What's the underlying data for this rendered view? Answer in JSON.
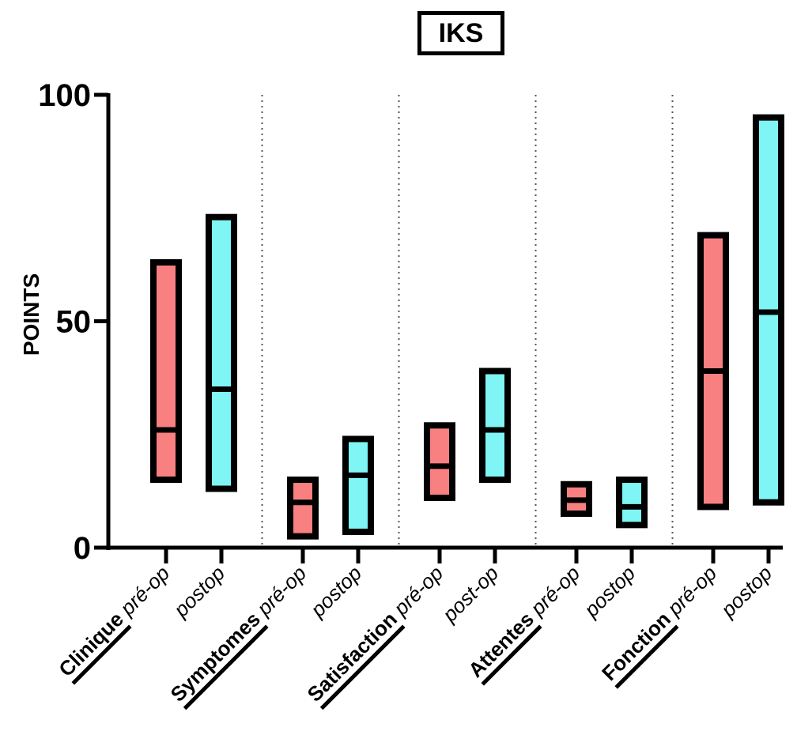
{
  "chart_data": {
    "type": "floating-bar",
    "title": "IKS",
    "ylabel": "POINTS",
    "ylim": [
      0,
      100
    ],
    "yticks": [
      0,
      50,
      100
    ],
    "groups": [
      {
        "name": "Clinique",
        "bars": [
          {
            "label": "pré-op",
            "phase": "pre",
            "min": 15,
            "median": 26,
            "max": 63
          },
          {
            "label": "postop",
            "phase": "post",
            "min": 13,
            "median": 35,
            "max": 73
          }
        ]
      },
      {
        "name": "Symptomes",
        "bars": [
          {
            "label": "pré-op",
            "phase": "pre",
            "min": 2.5,
            "median": 10,
            "max": 15
          },
          {
            "label": "postop",
            "phase": "post",
            "min": 3.5,
            "median": 16,
            "max": 24
          }
        ]
      },
      {
        "name": "Satisfaction",
        "bars": [
          {
            "label": "pré-op",
            "phase": "pre",
            "min": 11,
            "median": 18,
            "max": 27
          },
          {
            "label": "post-op",
            "phase": "post",
            "min": 15,
            "median": 26,
            "max": 39
          }
        ]
      },
      {
        "name": "Attentes",
        "bars": [
          {
            "label": "pré-op",
            "phase": "pre",
            "min": 7.5,
            "median": 10.5,
            "max": 14
          },
          {
            "label": "postop",
            "phase": "post",
            "min": 5,
            "median": 9,
            "max": 15
          }
        ]
      },
      {
        "name": "Fonction",
        "bars": [
          {
            "label": "pré-op",
            "phase": "pre",
            "min": 9,
            "median": 39,
            "max": 69
          },
          {
            "label": "postop",
            "phase": "post",
            "min": 10,
            "median": 52,
            "max": 95
          }
        ]
      }
    ],
    "colors": {
      "pre": "#f88080",
      "post": "#7ff5f5",
      "outline": "#000000"
    },
    "grid": false,
    "group_separators": "dotted"
  }
}
